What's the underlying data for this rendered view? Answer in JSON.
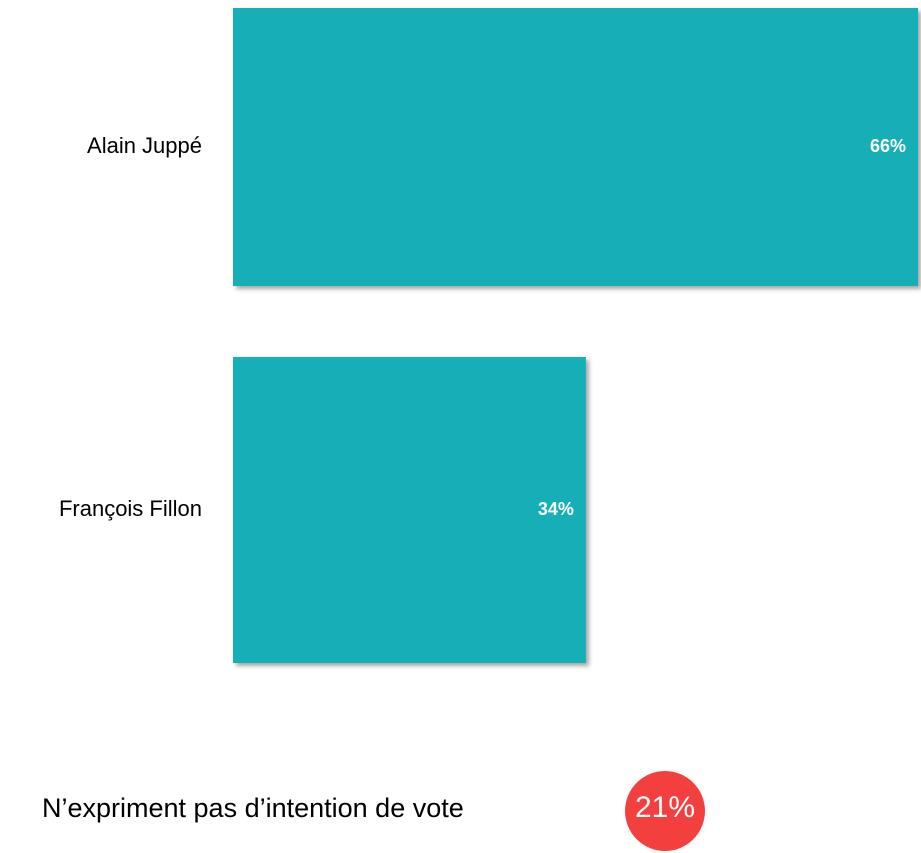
{
  "chart_data": {
    "type": "hbar",
    "categories": [
      "Alain Juppé",
      "François Fillon"
    ],
    "values": [
      66,
      34
    ],
    "value_labels": [
      "66%",
      "34%"
    ],
    "color": "#14afb8",
    "xlim": [
      0,
      66
    ],
    "annotation": {
      "text": "N’expriment pas d’intention de vote",
      "value": 21,
      "value_label": "21%",
      "color": "#f43f3f"
    }
  }
}
